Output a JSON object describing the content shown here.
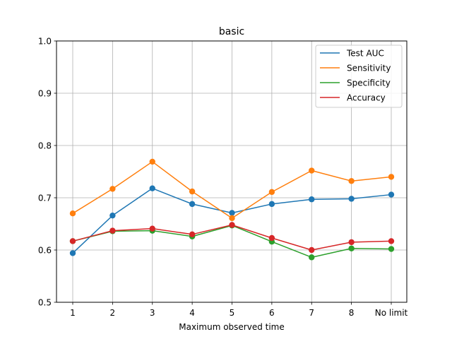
{
  "chart_data": {
    "type": "line",
    "title": "basic",
    "xlabel": "Maximum observed time",
    "ylabel": "",
    "categories": [
      "1",
      "2",
      "3",
      "4",
      "5",
      "6",
      "7",
      "8",
      "No limit"
    ],
    "ylim": [
      0.5,
      1.0
    ],
    "yticks": [
      "0.5",
      "0.6",
      "0.7",
      "0.8",
      "0.9",
      "1.0"
    ],
    "grid": true,
    "legend_position": "top-right",
    "series": [
      {
        "name": "Test AUC",
        "color": "#1f77b4",
        "values": [
          0.594,
          0.666,
          0.718,
          0.688,
          0.671,
          0.688,
          0.697,
          0.698,
          0.706
        ]
      },
      {
        "name": "Sensitivity",
        "color": "#ff7f0e",
        "values": [
          0.67,
          0.717,
          0.769,
          0.712,
          0.661,
          0.711,
          0.752,
          0.732,
          0.74
        ]
      },
      {
        "name": "Specificity",
        "color": "#2ca02c",
        "values": [
          0.617,
          0.636,
          0.637,
          0.626,
          0.647,
          0.616,
          0.586,
          0.603,
          0.602
        ]
      },
      {
        "name": "Accuracy",
        "color": "#d62728",
        "values": [
          0.617,
          0.637,
          0.641,
          0.63,
          0.648,
          0.623,
          0.6,
          0.615,
          0.617
        ]
      }
    ]
  }
}
